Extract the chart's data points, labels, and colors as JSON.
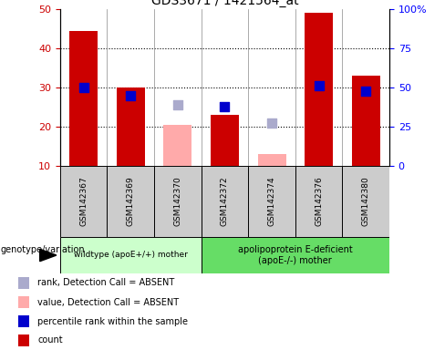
{
  "title": "GDS3671 / 1421564_at",
  "samples": [
    "GSM142367",
    "GSM142369",
    "GSM142370",
    "GSM142372",
    "GSM142374",
    "GSM142376",
    "GSM142380"
  ],
  "red_bars": [
    44.5,
    30.0,
    null,
    23.0,
    null,
    49.0,
    33.0
  ],
  "pink_bars": [
    null,
    null,
    20.5,
    null,
    13.0,
    null,
    null
  ],
  "blue_dots": [
    30.0,
    28.0,
    null,
    25.0,
    null,
    30.5,
    29.0
  ],
  "light_blue_dots": [
    null,
    null,
    25.5,
    null,
    21.0,
    null,
    null
  ],
  "ylim_left": [
    10,
    50
  ],
  "ylim_right": [
    0,
    100
  ],
  "yticks_left": [
    10,
    20,
    30,
    40,
    50
  ],
  "yticks_right": [
    0,
    25,
    50,
    75,
    100
  ],
  "ytick_labels_right": [
    "0",
    "25",
    "50",
    "75",
    "100%"
  ],
  "group1_indices": [
    0,
    1,
    2
  ],
  "group2_indices": [
    3,
    4,
    5,
    6
  ],
  "group1_label": "wildtype (apoE+/+) mother",
  "group2_label": "apolipoprotein E-deficient\n(apoE-/-) mother",
  "genotype_label": "genotype/variation",
  "legend_labels": [
    "count",
    "percentile rank within the sample",
    "value, Detection Call = ABSENT",
    "rank, Detection Call = ABSENT"
  ],
  "bar_width": 0.6,
  "dot_size": 45,
  "red_color": "#cc0000",
  "pink_color": "#ffaaaa",
  "blue_color": "#0000cc",
  "light_blue_color": "#aaaacc",
  "group1_bg": "#ccffcc",
  "group2_bg": "#66dd66",
  "sample_bg": "#cccccc",
  "grid_color": "black",
  "grid_lines": [
    20,
    30,
    40
  ],
  "sep_color": "#888888"
}
